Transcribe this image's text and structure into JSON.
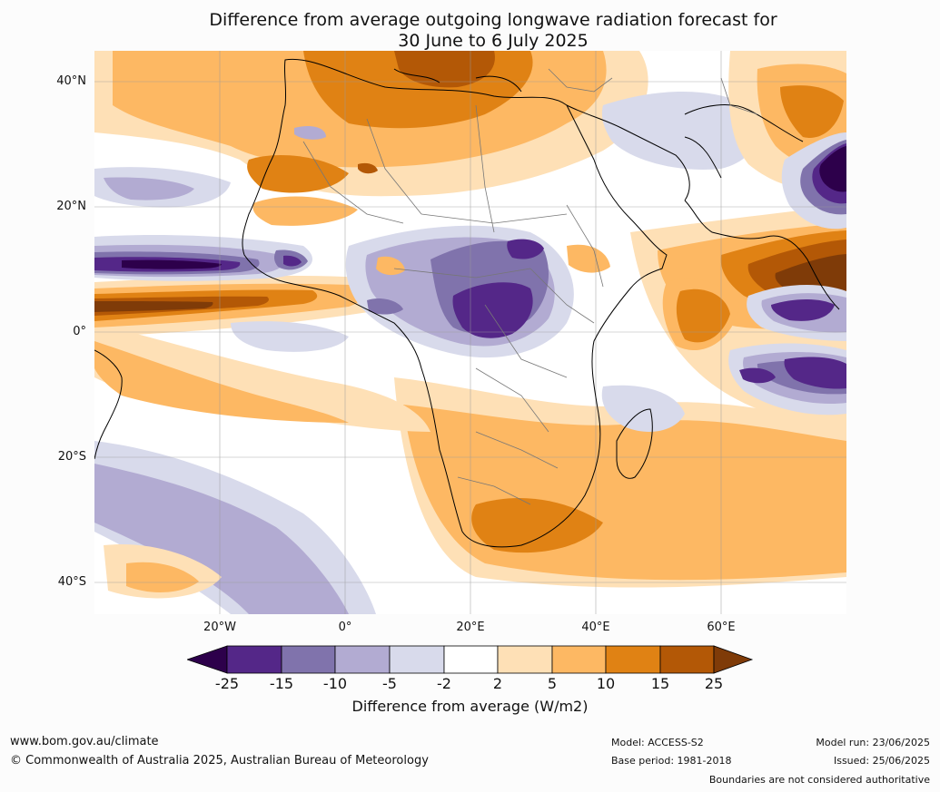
{
  "title": {
    "line1": "Difference from average outgoing longwave radiation forecast for",
    "line2": "30 June to 6 July 2025"
  },
  "map": {
    "lat_labels": [
      "40°N",
      "20°N",
      "0°",
      "20°S",
      "40°S"
    ],
    "lon_labels": [
      "20°W",
      "0°",
      "20°E",
      "40°E",
      "60°E"
    ],
    "palette": {
      "lt_-25": "#2d004b",
      "-25_-15": "#542788",
      "-15_-10": "#8073ac",
      "-10_-5": "#b2abd2",
      "-5_-2": "#d8daeb",
      "-2_2": "#ffffff",
      "2_5": "#fee0b6",
      "5_10": "#fdb863",
      "10_15": "#e08214",
      "15_25": "#b35806",
      "gt_25": "#7f3b08"
    }
  },
  "colorbar": {
    "ticks": [
      "-25",
      "-15",
      "-10",
      "-5",
      "-2",
      "2",
      "5",
      "10",
      "15",
      "25"
    ],
    "label": "Difference from average (W/m2)"
  },
  "footer": {
    "website": "www.bom.gov.au/climate",
    "copyright": "© Commonwealth of Australia 2025, Australian Bureau of Meteorology",
    "model": "Model: ACCESS-S2",
    "base_period": "Base period: 1981-2018",
    "model_run": "Model run: 23/06/2025",
    "issued": "Issued: 25/06/2025",
    "disclaimer": "Boundaries are not considered authoritative"
  }
}
